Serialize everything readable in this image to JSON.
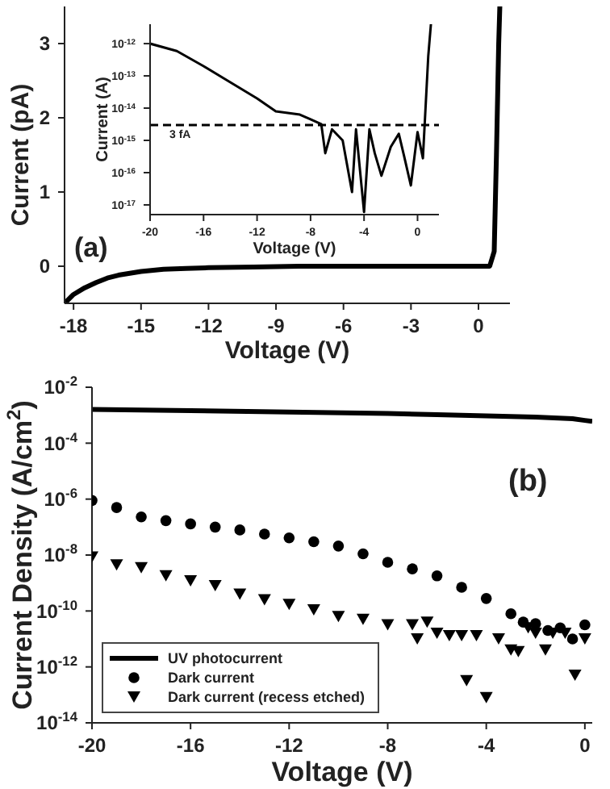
{
  "chart_data": [
    {
      "type": "line",
      "xlabel": "Voltage (V)",
      "ylabel": "Current (pA)",
      "annotations": [
        "(a)"
      ],
      "x": [
        -18.4,
        -18,
        -17.5,
        -17,
        -16.5,
        -16,
        -15,
        -14,
        -13,
        -12,
        -10,
        -8,
        -6,
        -3,
        0,
        0.5,
        0.7,
        0.8,
        0.9,
        0.95
      ],
      "series": [
        {
          "color": "#000000",
          "values": [
            -0.5,
            -0.38,
            -0.29,
            -0.22,
            -0.16,
            -0.12,
            -0.07,
            -0.04,
            -0.03,
            -0.02,
            -0.01,
            0,
            0,
            0,
            0,
            0,
            0.2,
            1.5,
            3,
            3.5
          ]
        }
      ],
      "xlim": [
        -18.4,
        1.4
      ],
      "ylim": [
        -0.5,
        3.5
      ],
      "xticks": [
        -18,
        -15,
        -12,
        -9,
        -6,
        -3,
        0
      ],
      "yticks": [
        0,
        1,
        2,
        3
      ],
      "marker": "none"
    },
    {
      "type": "line",
      "xlabel": "Voltage (V)",
      "ylabel": "Current (A)",
      "log": "y",
      "x": [
        -20,
        -18,
        -16,
        -14,
        -12,
        -10.6,
        -8.8,
        -8,
        -7.2,
        -6.9,
        -6.4,
        -5.6,
        -4.9,
        -4.6,
        -4,
        -3.6,
        -3.2,
        -2.7,
        -2,
        -1.4,
        -1,
        -0.5,
        0,
        0.4,
        0.8,
        1.0
      ],
      "series": [
        {
          "color": "#000000",
          "values": [
            1e-12,
            5.9e-13,
            2e-13,
            6.3e-14,
            2e-14,
            8e-15,
            6.3e-15,
            4.5e-15,
            3.2e-15,
            4e-16,
            2.2e-15,
            1e-15,
            2.5e-17,
            2.2e-15,
            6e-18,
            2.2e-15,
            4e-16,
            8e-17,
            6.3e-16,
            1.6e-15,
            3.2e-16,
            4e-17,
            1.8e-15,
            2.8e-16,
            4e-13,
            4e-12
          ]
        }
      ],
      "xlim": [
        -20,
        1.6
      ],
      "ylim": [
        5e-18,
        4e-12
      ],
      "xticks": [
        -20,
        -16,
        -12,
        -8,
        -4,
        0
      ],
      "yticks": [
        {
          "value": 1e-12,
          "label": "10$^{-12}$"
        },
        {
          "value": 1e-13,
          "label": "10$^{-13}$"
        },
        {
          "value": 1e-14,
          "label": "10$^{-14}$"
        },
        {
          "value": 1e-15,
          "label": "10$^{-15}$"
        },
        {
          "value": 1e-16,
          "label": "10$^{-16}$"
        },
        {
          "value": 1e-17,
          "label": "10$^{-17}$"
        }
      ],
      "ref_lines": [
        {
          "axis": "y",
          "value": 3e-15,
          "label": "3 fA",
          "line_style": "dashed",
          "color": "#000000"
        }
      ],
      "marker": "none"
    },
    {
      "type": "line",
      "xlabel": "Voltage (V)",
      "ylabel": "Current Density (A/cm$^{2}$)",
      "annotations": [
        "(b)"
      ],
      "log": "y",
      "legend": "bottom left",
      "series": [
        {
          "name": "UV photocurrent",
          "type": "line",
          "marker": "none",
          "color": "#000000",
          "x": [
            -20,
            -16,
            -12,
            -8,
            -6,
            -4,
            -2,
            -0.5,
            0,
            0.3
          ],
          "values": [
            0.0016,
            0.00145,
            0.0013,
            0.00115,
            0.00105,
            0.00095,
            0.00085,
            0.00075,
            0.00065,
            0.0006
          ]
        },
        {
          "name": "Dark current",
          "type": "scatter",
          "marker": "circle",
          "color": "#000000",
          "x": [
            -20,
            -19,
            -18,
            -17,
            -16,
            -15,
            -14,
            -13,
            -12,
            -11,
            -10,
            -9,
            -8,
            -7,
            -6,
            -5,
            -4,
            -3,
            -2.5,
            -2,
            -1.5,
            -1,
            -0.5,
            0
          ],
          "values": [
            8.9e-07,
            5e-07,
            2.3e-07,
            1.7e-07,
            1.3e-07,
            1e-07,
            7.9e-08,
            5.6e-08,
            4.1e-08,
            3e-08,
            2.1e-08,
            1.1e-08,
            5.5e-09,
            3.2e-09,
            1.8e-09,
            7e-10,
            2.8e-10,
            8e-11,
            4e-11,
            3.5e-11,
            2e-11,
            2.5e-11,
            1e-11,
            3.2e-11
          ]
        },
        {
          "name": "Dark current (recess etched)",
          "type": "scatter",
          "marker": "triangle",
          "color": "#000000",
          "x": [
            -20,
            -19,
            -18,
            -17,
            -16,
            -15,
            -14,
            -13,
            -12,
            -11,
            -10,
            -9,
            -8,
            -7,
            -6.8,
            -6.4,
            -6,
            -5.5,
            -5,
            -4.8,
            -4.4,
            -4,
            -3.5,
            -3,
            -2.7,
            -2.3,
            -2,
            -1.6,
            -1.3,
            -0.8,
            -0.4,
            0
          ],
          "values": [
            8.5e-09,
            4.4e-09,
            3.5e-09,
            1.8e-09,
            1.2e-09,
            8e-10,
            4e-10,
            2.5e-10,
            1.7e-10,
            1.1e-10,
            6.3e-11,
            5e-11,
            3.2e-11,
            3.2e-11,
            1e-11,
            4e-11,
            1.6e-11,
            1.3e-11,
            1.3e-11,
            3.2e-13,
            1.3e-11,
            8e-14,
            1e-11,
            4e-12,
            3.5e-12,
            2.5e-11,
            1.6e-11,
            4e-12,
            1.6e-11,
            1.6e-11,
            5e-13,
            1e-11
          ]
        }
      ],
      "xlim": [
        -20,
        0.3
      ],
      "ylim": [
        1e-14,
        0.01
      ],
      "xticks": [
        -20,
        -16,
        -12,
        -8,
        -4,
        0
      ],
      "yticks": [
        {
          "value": 0.01,
          "label": "10$^{-2}$"
        },
        {
          "value": 0.0001,
          "label": "10$^{-4}$"
        },
        {
          "value": 1e-06,
          "label": "10$^{-6}$"
        },
        {
          "value": 1e-08,
          "label": "10$^{-8}$"
        },
        {
          "value": 1e-10,
          "label": "10$^{-10}$"
        },
        {
          "value": 1e-12,
          "label": "10$^{-12}$"
        },
        {
          "value": 1e-14,
          "label": "10$^{-14}$"
        }
      ]
    }
  ]
}
